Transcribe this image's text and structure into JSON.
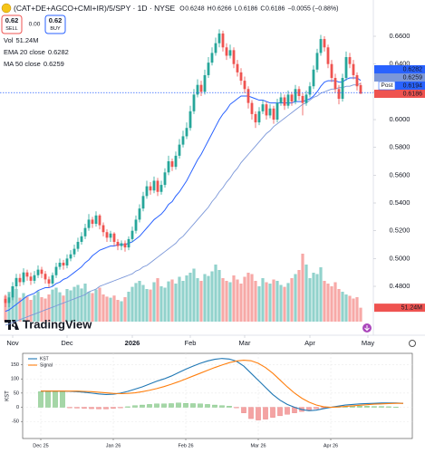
{
  "chart_data": [
    {
      "type": "candlestick",
      "title": "(CAT+DE+AGCO+CMI+IR)/5/SPY · 1D · NYSE",
      "ohlc_labels": [
        "O",
        "H",
        "L",
        "C"
      ],
      "change_label": "−0.0055 (−0.88%)",
      "sell": {
        "price": "0.62",
        "label": "SELL"
      },
      "spread": "0.00",
      "buy": {
        "price": "0.62",
        "label": "BUY"
      },
      "up_color": "#26a69a",
      "down_color": "#ef5350",
      "open": [
        0.471,
        0.468,
        0.472,
        0.48,
        0.486,
        0.483,
        0.49,
        0.487,
        0.484,
        0.488,
        0.492,
        0.489,
        0.485,
        0.482,
        0.488,
        0.494,
        0.497,
        0.495,
        0.5,
        0.503,
        0.507,
        0.512,
        0.516,
        0.522,
        0.528,
        0.525,
        0.531,
        0.524,
        0.519,
        0.515,
        0.518,
        0.512,
        0.509,
        0.511,
        0.508,
        0.514,
        0.52,
        0.528,
        0.536,
        0.545,
        0.552,
        0.549,
        0.556,
        0.548,
        0.553,
        0.562,
        0.57,
        0.566,
        0.574,
        0.582,
        0.588,
        0.594,
        0.606,
        0.618,
        0.625,
        0.62,
        0.632,
        0.641,
        0.648,
        0.655,
        0.662,
        0.652,
        0.646,
        0.65,
        0.64,
        0.634,
        0.628,
        0.622,
        0.612,
        0.604,
        0.598,
        0.606,
        0.611,
        0.603,
        0.608,
        0.6,
        0.612,
        0.616,
        0.61,
        0.618,
        0.613,
        0.622,
        0.617,
        0.612,
        0.618,
        0.624,
        0.636,
        0.648,
        0.658,
        0.652,
        0.64,
        0.63,
        0.622,
        0.615,
        0.63,
        0.645,
        0.64,
        0.632,
        0.6248
      ],
      "high": [
        0.474,
        0.475,
        0.483,
        0.489,
        0.489,
        0.493,
        0.492,
        0.49,
        0.491,
        0.495,
        0.494,
        0.491,
        0.487,
        0.49,
        0.497,
        0.5,
        0.499,
        0.503,
        0.506,
        0.51,
        0.515,
        0.519,
        0.525,
        0.532,
        0.53,
        0.534,
        0.532,
        0.526,
        0.521,
        0.52,
        0.519,
        0.514,
        0.513,
        0.513,
        0.516,
        0.523,
        0.531,
        0.539,
        0.548,
        0.556,
        0.555,
        0.559,
        0.558,
        0.556,
        0.565,
        0.574,
        0.572,
        0.577,
        0.586,
        0.592,
        0.598,
        0.61,
        0.622,
        0.629,
        0.628,
        0.636,
        0.645,
        0.652,
        0.659,
        0.665,
        0.664,
        0.655,
        0.654,
        0.652,
        0.643,
        0.637,
        0.631,
        0.624,
        0.614,
        0.606,
        0.609,
        0.614,
        0.613,
        0.611,
        0.61,
        0.615,
        0.619,
        0.618,
        0.621,
        0.62,
        0.625,
        0.624,
        0.619,
        0.621,
        0.627,
        0.639,
        0.651,
        0.661,
        0.66,
        0.654,
        0.643,
        0.633,
        0.625,
        0.633,
        0.649,
        0.648,
        0.643,
        0.634,
        0.6266
      ],
      "low": [
        0.465,
        0.465,
        0.47,
        0.478,
        0.48,
        0.481,
        0.484,
        0.481,
        0.482,
        0.486,
        0.486,
        0.482,
        0.479,
        0.48,
        0.486,
        0.492,
        0.492,
        0.493,
        0.498,
        0.501,
        0.505,
        0.51,
        0.514,
        0.52,
        0.522,
        0.523,
        0.521,
        0.516,
        0.512,
        0.512,
        0.509,
        0.506,
        0.506,
        0.505,
        0.506,
        0.512,
        0.518,
        0.526,
        0.534,
        0.543,
        0.546,
        0.547,
        0.545,
        0.546,
        0.551,
        0.56,
        0.563,
        0.564,
        0.572,
        0.58,
        0.586,
        0.592,
        0.604,
        0.616,
        0.617,
        0.618,
        0.63,
        0.639,
        0.646,
        0.652,
        0.649,
        0.643,
        0.644,
        0.637,
        0.631,
        0.625,
        0.619,
        0.608,
        0.6,
        0.594,
        0.596,
        0.604,
        0.6,
        0.601,
        0.597,
        0.598,
        0.61,
        0.607,
        0.608,
        0.61,
        0.611,
        0.614,
        0.603,
        0.61,
        0.616,
        0.622,
        0.634,
        0.646,
        0.649,
        0.637,
        0.627,
        0.619,
        0.611,
        0.613,
        0.628,
        0.637,
        0.629,
        0.621,
        0.6186
      ],
      "close": [
        0.468,
        0.472,
        0.48,
        0.486,
        0.483,
        0.49,
        0.487,
        0.484,
        0.488,
        0.492,
        0.489,
        0.485,
        0.482,
        0.488,
        0.494,
        0.497,
        0.495,
        0.5,
        0.503,
        0.507,
        0.512,
        0.516,
        0.522,
        0.528,
        0.525,
        0.531,
        0.524,
        0.519,
        0.515,
        0.518,
        0.512,
        0.509,
        0.511,
        0.508,
        0.514,
        0.52,
        0.528,
        0.536,
        0.545,
        0.552,
        0.549,
        0.556,
        0.548,
        0.553,
        0.562,
        0.57,
        0.566,
        0.574,
        0.582,
        0.588,
        0.594,
        0.606,
        0.618,
        0.625,
        0.62,
        0.632,
        0.641,
        0.648,
        0.655,
        0.662,
        0.652,
        0.646,
        0.65,
        0.64,
        0.634,
        0.628,
        0.622,
        0.612,
        0.604,
        0.598,
        0.606,
        0.611,
        0.603,
        0.608,
        0.6,
        0.612,
        0.616,
        0.61,
        0.618,
        0.613,
        0.622,
        0.617,
        0.612,
        0.618,
        0.624,
        0.636,
        0.648,
        0.658,
        0.652,
        0.64,
        0.63,
        0.622,
        0.615,
        0.63,
        0.645,
        0.64,
        0.632,
        0.624,
        0.6186
      ],
      "volume": {
        "name": "Vol",
        "last_label": "51.24M",
        "values": [
          95,
          110,
          130,
          120,
          88,
          105,
          92,
          80,
          98,
          112,
          90,
          85,
          100,
          118,
          125,
          108,
          96,
          120,
          115,
          128,
          135,
          122,
          140,
          110,
          105,
          118,
          125,
          100,
          92,
          88,
          96,
          80,
          75,
          90,
          110,
          128,
          142,
          150,
          135,
          120,
          118,
          145,
          160,
          130,
          125,
          148,
          155,
          140,
          165,
          150,
          170,
          180,
          195,
          160,
          150,
          175,
          168,
          185,
          210,
          190,
          160,
          150,
          145,
          170,
          155,
          140,
          165,
          180,
          175,
          150,
          130,
          160,
          145,
          140,
          155,
          150,
          135,
          128,
          142,
          160,
          175,
          190,
          250,
          210,
          160,
          180,
          175,
          200,
          150,
          140,
          130,
          145,
          120,
          110,
          100,
          95,
          85,
          90,
          51.24
        ]
      },
      "series": [
        {
          "name": "EMA 20 close",
          "color": "#2962ff",
          "values": [
            0.462,
            0.463,
            0.465,
            0.467,
            0.469,
            0.471,
            0.473,
            0.474,
            0.475,
            0.477,
            0.478,
            0.479,
            0.479,
            0.48,
            0.482,
            0.483,
            0.485,
            0.486,
            0.488,
            0.49,
            0.492,
            0.494,
            0.497,
            0.499,
            0.502,
            0.504,
            0.506,
            0.507,
            0.508,
            0.509,
            0.509,
            0.51,
            0.51,
            0.51,
            0.511,
            0.512,
            0.514,
            0.516,
            0.519,
            0.522,
            0.525,
            0.528,
            0.53,
            0.532,
            0.535,
            0.539,
            0.541,
            0.545,
            0.548,
            0.552,
            0.556,
            0.561,
            0.566,
            0.571,
            0.575,
            0.58,
            0.585,
            0.59,
            0.595,
            0.6,
            0.604,
            0.607,
            0.611,
            0.613,
            0.615,
            0.617,
            0.617,
            0.617,
            0.616,
            0.615,
            0.614,
            0.614,
            0.613,
            0.612,
            0.612,
            0.612,
            0.612,
            0.612,
            0.612,
            0.612,
            0.613,
            0.613,
            0.613,
            0.614,
            0.615,
            0.617,
            0.62,
            0.624,
            0.627,
            0.628,
            0.628,
            0.628,
            0.627,
            0.627,
            0.629,
            0.63,
            0.63,
            0.63,
            0.6282
          ]
        },
        {
          "name": "MA 50 close",
          "color": "#7b97d9",
          "values": [
            0.452,
            0.453,
            0.454,
            0.455,
            0.456,
            0.457,
            0.458,
            0.459,
            0.46,
            0.461,
            0.462,
            0.463,
            0.464,
            0.465,
            0.466,
            0.467,
            0.468,
            0.469,
            0.47,
            0.471,
            0.472,
            0.473,
            0.474,
            0.476,
            0.477,
            0.478,
            0.48,
            0.481,
            0.482,
            0.483,
            0.484,
            0.485,
            0.486,
            0.487,
            0.488,
            0.489,
            0.491,
            0.492,
            0.494,
            0.495,
            0.497,
            0.499,
            0.501,
            0.503,
            0.505,
            0.507,
            0.509,
            0.511,
            0.514,
            0.516,
            0.519,
            0.522,
            0.525,
            0.528,
            0.531,
            0.534,
            0.537,
            0.541,
            0.544,
            0.548,
            0.551,
            0.555,
            0.558,
            0.562,
            0.565,
            0.569,
            0.572,
            0.575,
            0.578,
            0.581,
            0.584,
            0.587,
            0.59,
            0.592,
            0.595,
            0.597,
            0.599,
            0.601,
            0.603,
            0.605,
            0.607,
            0.609,
            0.611,
            0.612,
            0.614,
            0.616,
            0.617,
            0.619,
            0.62,
            0.621,
            0.622,
            0.622,
            0.623,
            0.623,
            0.624,
            0.624,
            0.625,
            0.625,
            0.6259
          ]
        }
      ],
      "post": {
        "label": "Post",
        "value": 0.6194,
        "color": "#2962ff"
      },
      "ylim": [
        0.4448,
        0.6861
      ],
      "yticks": [
        {
          "value": 0.66,
          "label": "0.6600"
        },
        {
          "value": 0.64,
          "label": "0.6400"
        },
        {
          "value": 0.62,
          "label": "0.6200"
        },
        {
          "value": 0.6,
          "label": "0.6000"
        },
        {
          "value": 0.58,
          "label": "0.5800"
        },
        {
          "value": 0.56,
          "label": "0.5600"
        },
        {
          "value": 0.54,
          "label": "0.5400"
        },
        {
          "value": 0.52,
          "label": "0.5200"
        },
        {
          "value": 0.5,
          "label": "0.5000"
        },
        {
          "value": 0.48,
          "label": "0.4800"
        }
      ],
      "xlim": [
        -1.5,
        101.5
      ],
      "xticks": [
        {
          "value": 2,
          "label": "Nov"
        },
        {
          "value": 17,
          "label": "Dec"
        },
        {
          "value": 35,
          "label": "2026"
        },
        {
          "value": 51,
          "label": "Feb"
        },
        {
          "value": 66,
          "label": "Mar"
        },
        {
          "value": 84,
          "label": "Apr"
        },
        {
          "value": 100,
          "label": "May"
        }
      ],
      "watermark": "TradingView"
    },
    {
      "type": "line",
      "ylabel": "KST",
      "series": [
        {
          "name": "KST",
          "color": "#1f77b4",
          "values": [
            57,
            57,
            57,
            57,
            56,
            55,
            53,
            50,
            47,
            45,
            46,
            50,
            56,
            64,
            72,
            82,
            92,
            100,
            110,
            122,
            134,
            145,
            155,
            163,
            169,
            172,
            170,
            162,
            145,
            120,
            95,
            70,
            45,
            25,
            10,
            0,
            -8,
            -12,
            -10,
            -5,
            0,
            4,
            8,
            10,
            12,
            13,
            14,
            15,
            15,
            15,
            14
          ]
        },
        {
          "name": "Signal",
          "color": "#ff7f0e",
          "values": [
            57,
            57,
            57,
            57,
            57,
            57,
            56,
            55,
            53,
            51,
            49,
            48,
            49,
            51,
            55,
            60,
            66,
            73,
            81,
            90,
            100,
            110,
            120,
            130,
            140,
            149,
            157,
            163,
            166,
            164,
            155,
            140,
            120,
            96,
            72,
            50,
            32,
            18,
            8,
            2,
            0,
            1,
            3,
            5,
            7,
            9,
            11,
            12,
            13,
            14,
            14
          ]
        }
      ],
      "histogram": {
        "up_color": "#a5d6a7",
        "down_color": "#f4a3a3",
        "values": [
          55,
          55,
          55,
          55,
          -2,
          -3,
          -4,
          -5,
          -6,
          -6,
          -4,
          -2,
          2,
          6,
          8,
          10,
          12,
          12,
          13,
          15,
          14,
          13,
          12,
          10,
          8,
          6,
          4,
          -2,
          -20,
          -40,
          -45,
          -42,
          -36,
          -30,
          -25,
          -20,
          -15,
          -10,
          -5,
          -2,
          1,
          2,
          3,
          4,
          4,
          4,
          3,
          3,
          2,
          1,
          0
        ]
      },
      "ylim": [
        -110,
        190
      ],
      "yticks": [
        -50,
        0,
        50,
        100,
        150
      ],
      "xlim": [
        -2.5,
        51.25
      ],
      "xticks": [
        {
          "value": 0,
          "label": "Dec 25"
        },
        {
          "value": 10,
          "label": "Jan 26"
        },
        {
          "value": 20,
          "label": "Feb 26"
        },
        {
          "value": 30,
          "label": "Mar 26"
        },
        {
          "value": 40,
          "label": "Apr 26"
        }
      ],
      "grid": true
    }
  ]
}
